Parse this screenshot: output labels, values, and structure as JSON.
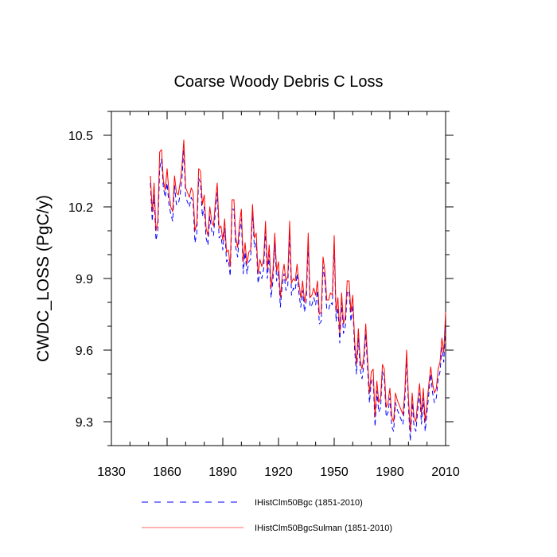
{
  "chart_data": {
    "type": "line",
    "title": "Coarse Woody Debris C Loss",
    "xlabel": "",
    "ylabel": "CWDC_LOSS  (PgC/y)",
    "xlim": [
      1830,
      2010
    ],
    "ylim": [
      9.2,
      10.6
    ],
    "xticks": [
      1830,
      1860,
      1890,
      1920,
      1950,
      1980,
      2010
    ],
    "yticks": [
      9.3,
      9.6,
      9.9,
      10.2,
      10.5
    ],
    "ytick_labels": [
      "9.3",
      "9.6",
      "9.9",
      "10.2",
      "10.5"
    ],
    "grid": false,
    "legend_position": "bottom",
    "x": [
      1851,
      1852,
      1853,
      1854,
      1855,
      1856,
      1857,
      1858,
      1859,
      1860,
      1861,
      1862,
      1863,
      1864,
      1865,
      1866,
      1867,
      1868,
      1869,
      1870,
      1871,
      1872,
      1873,
      1874,
      1875,
      1876,
      1877,
      1878,
      1879,
      1880,
      1881,
      1882,
      1883,
      1884,
      1885,
      1886,
      1887,
      1888,
      1889,
      1890,
      1891,
      1892,
      1893,
      1894,
      1895,
      1896,
      1897,
      1898,
      1899,
      1900,
      1901,
      1902,
      1903,
      1904,
      1905,
      1906,
      1907,
      1908,
      1909,
      1910,
      1911,
      1912,
      1913,
      1914,
      1915,
      1916,
      1917,
      1918,
      1919,
      1920,
      1921,
      1922,
      1923,
      1924,
      1925,
      1926,
      1927,
      1928,
      1929,
      1930,
      1931,
      1932,
      1933,
      1934,
      1935,
      1936,
      1937,
      1938,
      1939,
      1940,
      1941,
      1942,
      1943,
      1944,
      1945,
      1946,
      1947,
      1948,
      1949,
      1950,
      1951,
      1952,
      1953,
      1954,
      1955,
      1956,
      1957,
      1958,
      1959,
      1960,
      1961,
      1962,
      1963,
      1964,
      1965,
      1966,
      1967,
      1968,
      1969,
      1970,
      1971,
      1972,
      1973,
      1974,
      1975,
      1976,
      1977,
      1978,
      1979,
      1980,
      1981,
      1982,
      1983,
      1984,
      1985,
      1986,
      1987,
      1988,
      1989,
      1990,
      1991,
      1992,
      1993,
      1994,
      1995,
      1996,
      1997,
      1998,
      1999,
      2000,
      2001,
      2002,
      2003,
      2004,
      2005,
      2006,
      2007,
      2008,
      2009,
      2010
    ],
    "series": [
      {
        "name": "IHistClm50Bgc (1851-2010)",
        "color": "#0000ff",
        "dash": "dashed",
        "values": [
          10.3,
          10.14,
          10.25,
          10.06,
          10.1,
          10.36,
          10.4,
          10.28,
          10.24,
          10.3,
          10.21,
          10.17,
          10.14,
          10.29,
          10.21,
          10.21,
          10.25,
          10.32,
          10.44,
          10.24,
          10.22,
          10.2,
          10.24,
          10.22,
          10.05,
          10.09,
          10.32,
          10.3,
          10.16,
          10.2,
          10.07,
          10.04,
          10.16,
          10.1,
          10.08,
          10.18,
          10.26,
          10.07,
          10.08,
          10.02,
          10.11,
          9.97,
          9.98,
          9.91,
          10.19,
          10.19,
          10.03,
          9.99,
          10.09,
          10.15,
          9.92,
          10.01,
          9.92,
          9.97,
          9.98,
          10.18,
          10.03,
          10.05,
          9.88,
          9.93,
          9.9,
          9.94,
          10.1,
          9.9,
          10.0,
          9.82,
          9.89,
          10.05,
          9.89,
          9.93,
          9.78,
          9.87,
          9.92,
          9.85,
          9.87,
          10.09,
          9.83,
          9.86,
          9.85,
          9.92,
          9.84,
          9.78,
          9.85,
          9.76,
          9.81,
          10.05,
          9.78,
          9.79,
          9.82,
          9.79,
          9.85,
          9.71,
          9.72,
          9.95,
          9.89,
          9.77,
          9.77,
          9.8,
          9.79,
          10.05,
          9.72,
          9.78,
          9.63,
          9.8,
          9.67,
          9.7,
          9.84,
          9.85,
          9.72,
          9.79,
          9.6,
          9.5,
          9.65,
          9.52,
          9.48,
          9.54,
          9.67,
          9.52,
          9.38,
          9.47,
          9.48,
          9.28,
          9.43,
          9.34,
          9.36,
          9.51,
          9.48,
          9.32,
          9.34,
          9.4,
          9.28,
          9.26,
          9.38,
          9.35,
          9.33,
          9.31,
          9.29,
          9.38,
          9.57,
          9.36,
          9.22,
          9.38,
          9.28,
          9.26,
          9.35,
          9.42,
          9.29,
          9.4,
          9.26,
          9.34,
          9.42,
          9.5,
          9.42,
          9.38,
          9.4,
          9.48,
          9.51,
          9.61,
          9.55,
          9.71
        ]
      },
      {
        "name": "IHistClm50BgcSulman (1851-2010)",
        "color": "#ff0000",
        "dash": "solid",
        "values": [
          10.33,
          10.18,
          10.3,
          10.1,
          10.14,
          10.43,
          10.44,
          10.31,
          10.27,
          10.36,
          10.26,
          10.2,
          10.18,
          10.33,
          10.26,
          10.25,
          10.3,
          10.37,
          10.48,
          10.28,
          10.26,
          10.24,
          10.28,
          10.26,
          10.1,
          10.13,
          10.36,
          10.35,
          10.21,
          10.25,
          10.11,
          10.08,
          10.2,
          10.14,
          10.12,
          10.22,
          10.3,
          10.11,
          10.12,
          10.06,
          10.15,
          10.01,
          10.02,
          9.95,
          10.23,
          10.23,
          10.07,
          10.03,
          10.13,
          10.19,
          9.97,
          10.05,
          9.96,
          10.01,
          10.02,
          10.21,
          10.07,
          10.09,
          9.92,
          9.98,
          9.95,
          9.98,
          10.14,
          9.94,
          10.04,
          9.86,
          9.93,
          10.09,
          9.93,
          9.97,
          9.82,
          9.91,
          9.96,
          9.89,
          9.91,
          10.14,
          9.88,
          9.9,
          9.89,
          9.96,
          9.88,
          9.82,
          9.89,
          9.8,
          9.85,
          10.09,
          9.82,
          9.83,
          9.86,
          9.83,
          9.89,
          9.75,
          9.76,
          9.99,
          9.93,
          9.81,
          9.81,
          9.84,
          9.83,
          10.08,
          9.76,
          9.82,
          9.67,
          9.84,
          9.71,
          9.74,
          9.89,
          9.89,
          9.76,
          9.83,
          9.64,
          9.54,
          9.69,
          9.56,
          9.52,
          9.58,
          9.71,
          9.56,
          9.42,
          9.51,
          9.52,
          9.32,
          9.47,
          9.38,
          9.4,
          9.54,
          9.52,
          9.36,
          9.38,
          9.44,
          9.32,
          9.3,
          9.42,
          9.39,
          9.37,
          9.35,
          9.33,
          9.42,
          9.6,
          9.4,
          9.26,
          9.42,
          9.32,
          9.3,
          9.39,
          9.46,
          9.33,
          9.44,
          9.3,
          9.38,
          9.46,
          9.53,
          9.46,
          9.42,
          9.44,
          9.52,
          9.55,
          9.65,
          9.59,
          9.76
        ]
      }
    ]
  }
}
